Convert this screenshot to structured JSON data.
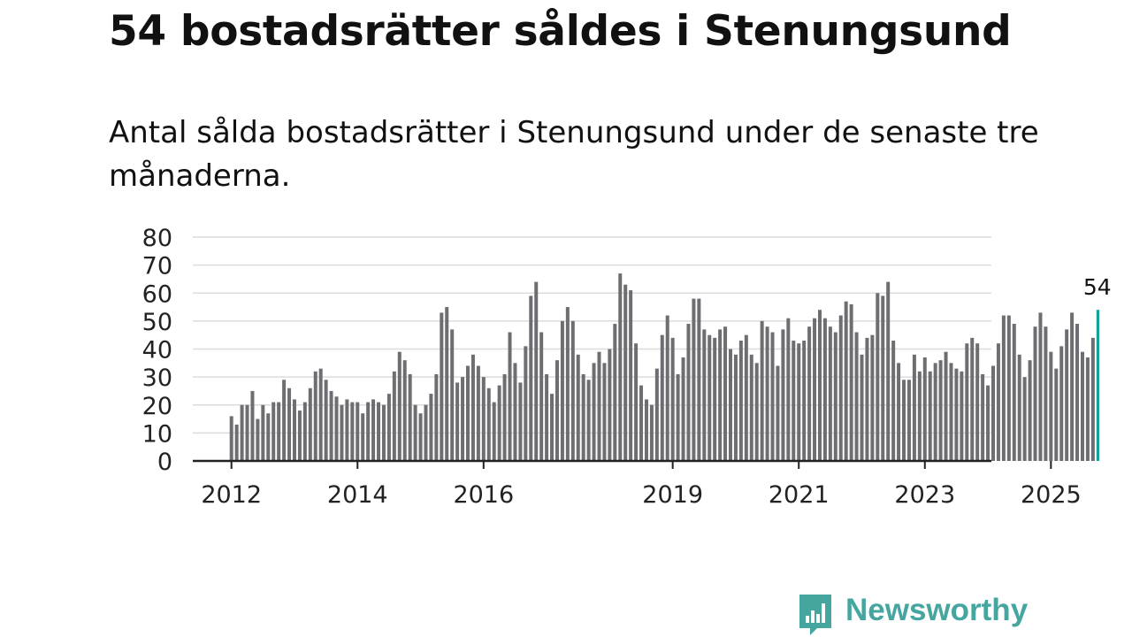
{
  "header": {
    "title": "54 bostadsrätter såldes i Stenungsund",
    "subtitle": "Antal sålda bostadsrätter i Stenungsund under de senaste tre månaderna."
  },
  "brand": {
    "name": "Newsworthy"
  },
  "colors": {
    "bar": "#6e6d72",
    "highlight": "#16a09a",
    "grid": "#dcdcdc",
    "axis": "#222222",
    "brand": "#45a6a0"
  },
  "chart_data": {
    "type": "bar",
    "title": "",
    "xlabel": "",
    "ylabel": "",
    "ylim": [
      0,
      80
    ],
    "yticks": [
      0,
      10,
      20,
      30,
      40,
      50,
      60,
      70,
      80
    ],
    "x_start": "2012-01",
    "x_ticks": [
      {
        "label": "2012",
        "index": 0
      },
      {
        "label": "2014",
        "index": 24
      },
      {
        "label": "2016",
        "index": 48
      },
      {
        "label": "2019",
        "index": 84
      },
      {
        "label": "2021",
        "index": 108
      },
      {
        "label": "2023",
        "index": 132
      },
      {
        "label": "2025",
        "index": 156
      }
    ],
    "values": [
      16,
      13,
      20,
      20,
      25,
      15,
      20,
      17,
      21,
      21,
      29,
      26,
      22,
      18,
      21,
      26,
      32,
      33,
      29,
      25,
      23,
      20,
      22,
      21,
      21,
      17,
      21,
      22,
      21,
      20,
      24,
      32,
      39,
      36,
      31,
      20,
      17,
      20,
      24,
      31,
      53,
      55,
      47,
      28,
      30,
      34,
      38,
      34,
      30,
      26,
      21,
      27,
      31,
      46,
      35,
      28,
      41,
      59,
      64,
      46,
      31,
      24,
      36,
      50,
      55,
      50,
      38,
      31,
      29,
      35,
      39,
      35,
      40,
      49,
      67,
      63,
      61,
      42,
      27,
      22,
      20,
      33,
      45,
      52,
      44,
      31,
      37,
      49,
      58,
      58,
      47,
      45,
      44,
      47,
      48,
      40,
      38,
      43,
      45,
      38,
      35,
      50,
      48,
      46,
      34,
      47,
      51,
      43,
      42,
      43,
      48,
      51,
      54,
      51,
      48,
      46,
      52,
      57,
      56,
      46,
      38,
      44,
      45,
      60,
      59,
      64,
      43,
      35,
      29,
      29,
      38,
      32,
      37,
      32,
      35,
      36,
      39,
      35,
      33,
      32,
      42,
      44,
      42,
      31,
      27,
      34,
      42,
      52,
      52,
      49,
      38,
      30,
      36,
      48,
      53,
      48,
      39,
      33,
      41,
      47,
      53,
      49,
      39,
      37,
      44,
      54
    ],
    "highlight_last": true,
    "last_value_label": "54"
  }
}
